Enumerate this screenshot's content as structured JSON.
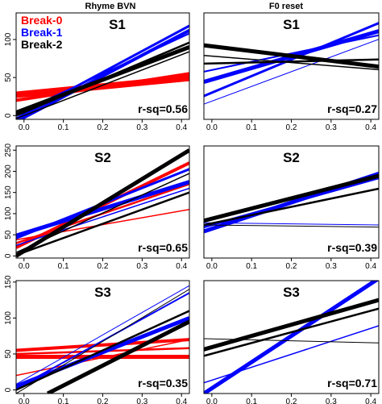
{
  "figure": {
    "column_titles": [
      "Rhyme BVN",
      "F0 reset"
    ],
    "legend": [
      {
        "label": "Break-0",
        "color": "#ff0000"
      },
      {
        "label": "Break-1",
        "color": "#0000ff"
      },
      {
        "label": "Break-2",
        "color": "#000000"
      }
    ]
  },
  "chart_data": [
    {
      "type": "line",
      "title": "S1",
      "annotation": "r-sq=0.56",
      "xlim": [
        -0.02,
        0.42
      ],
      "ylim": [
        -5,
        135
      ],
      "xticks": [
        "0.0",
        "0.1",
        "0.2",
        "0.3",
        "0.4"
      ],
      "xtick_values": [
        0,
        0.1,
        0.2,
        0.3,
        0.4
      ],
      "yticks": [
        "0",
        "50",
        "100"
      ],
      "ytick_values": [
        0,
        50,
        100
      ],
      "series": [
        {
          "group": "Break-0",
          "color": "#ff0000",
          "width": 5,
          "x": [
            -0.02,
            0.42
          ],
          "y": [
            27,
            48
          ]
        },
        {
          "group": "Break-0",
          "color": "#ff0000",
          "width": 4,
          "x": [
            -0.02,
            0.42
          ],
          "y": [
            20,
            55
          ]
        },
        {
          "group": "Break-0",
          "color": "#ff0000",
          "width": 3,
          "x": [
            -0.02,
            0.42
          ],
          "y": [
            30,
            52
          ]
        },
        {
          "group": "Break-0",
          "color": "#ff0000",
          "width": 1.5,
          "x": [
            -0.02,
            0.42
          ],
          "y": [
            24,
            46
          ]
        },
        {
          "group": "Break-1",
          "color": "#0000ff",
          "width": 4,
          "x": [
            -0.02,
            0.42
          ],
          "y": [
            -8,
            112
          ]
        },
        {
          "group": "Break-1",
          "color": "#0000ff",
          "width": 3,
          "x": [
            -0.02,
            0.42
          ],
          "y": [
            -4,
            118
          ]
        },
        {
          "group": "Break-1",
          "color": "#0000ff",
          "width": 2,
          "x": [
            -0.02,
            0.42
          ],
          "y": [
            2,
            108
          ]
        },
        {
          "group": "Break-2",
          "color": "#000000",
          "width": 5,
          "x": [
            -0.02,
            0.42
          ],
          "y": [
            4,
            90
          ]
        },
        {
          "group": "Break-2",
          "color": "#000000",
          "width": 2.5,
          "x": [
            -0.02,
            0.42
          ],
          "y": [
            0,
            96
          ]
        },
        {
          "group": "Break-2",
          "color": "#000000",
          "width": 1.5,
          "x": [
            -0.02,
            0.42
          ],
          "y": [
            -4,
            84
          ]
        }
      ]
    },
    {
      "type": "line",
      "title": "S1",
      "annotation": "r-sq=0.27",
      "xlim": [
        -0.02,
        0.42
      ],
      "ylim": [
        -0.05,
        1.0
      ],
      "xticks": [
        "0.0",
        "0.1",
        "0.2",
        "0.3",
        "0.4"
      ],
      "xtick_values": [
        0,
        0.1,
        0.2,
        0.3,
        0.4
      ],
      "yticks": [],
      "ytick_values": [],
      "series": [
        {
          "group": "Break-1",
          "color": "#0000ff",
          "width": 5,
          "x": [
            -0.02,
            0.42
          ],
          "y": [
            0.32,
            0.82
          ]
        },
        {
          "group": "Break-1",
          "color": "#0000ff",
          "width": 3,
          "x": [
            -0.02,
            0.42
          ],
          "y": [
            0.18,
            0.9
          ]
        },
        {
          "group": "Break-1",
          "color": "#0000ff",
          "width": 2,
          "x": [
            -0.02,
            0.42
          ],
          "y": [
            0.42,
            0.78
          ]
        },
        {
          "group": "Break-1",
          "color": "#0000ff",
          "width": 1,
          "x": [
            -0.02,
            0.42
          ],
          "y": [
            0.1,
            0.74
          ]
        },
        {
          "group": "Break-2",
          "color": "#000000",
          "width": 5,
          "x": [
            -0.02,
            0.42
          ],
          "y": [
            0.68,
            0.47
          ]
        },
        {
          "group": "Break-2",
          "color": "#000000",
          "width": 2.5,
          "x": [
            -0.02,
            0.42
          ],
          "y": [
            0.5,
            0.54
          ]
        },
        {
          "group": "Break-2",
          "color": "#000000",
          "width": 1.5,
          "x": [
            -0.02,
            0.42
          ],
          "y": [
            0.58,
            0.44
          ]
        }
      ]
    },
    {
      "type": "line",
      "title": "S2",
      "annotation": "r-sq=0.65",
      "xlim": [
        -0.02,
        0.42
      ],
      "ylim": [
        -5,
        260
      ],
      "xticks": [
        "0.0",
        "0.1",
        "0.2",
        "0.3",
        "0.4"
      ],
      "xtick_values": [
        0,
        0.1,
        0.2,
        0.3,
        0.4
      ],
      "yticks": [
        "0",
        "50",
        "100",
        "150",
        "200",
        "250"
      ],
      "ytick_values": [
        0,
        50,
        100,
        150,
        200,
        250
      ],
      "series": [
        {
          "group": "Break-0",
          "color": "#ff0000",
          "width": 4,
          "x": [
            -0.02,
            0.42
          ],
          "y": [
            20,
            220
          ]
        },
        {
          "group": "Break-0",
          "color": "#ff0000",
          "width": 2.5,
          "x": [
            -0.02,
            0.42
          ],
          "y": [
            30,
            170
          ]
        },
        {
          "group": "Break-0",
          "color": "#ff0000",
          "width": 1.5,
          "x": [
            -0.02,
            0.42
          ],
          "y": [
            38,
            110
          ]
        },
        {
          "group": "Break-1",
          "color": "#0000ff",
          "width": 5,
          "x": [
            -0.02,
            0.42
          ],
          "y": [
            48,
            175
          ]
        },
        {
          "group": "Break-1",
          "color": "#0000ff",
          "width": 3,
          "x": [
            -0.02,
            0.42
          ],
          "y": [
            42,
            205
          ]
        },
        {
          "group": "Break-1",
          "color": "#0000ff",
          "width": 1.5,
          "x": [
            -0.02,
            0.42
          ],
          "y": [
            25,
            160
          ]
        },
        {
          "group": "Break-2",
          "color": "#000000",
          "width": 5,
          "x": [
            -0.02,
            0.42
          ],
          "y": [
            0,
            250
          ]
        },
        {
          "group": "Break-2",
          "color": "#000000",
          "width": 2.5,
          "x": [
            -0.02,
            0.42
          ],
          "y": [
            2,
            150
          ]
        },
        {
          "group": "Break-2",
          "color": "#000000",
          "width": 1.5,
          "x": [
            -0.02,
            0.42
          ],
          "y": [
            8,
            195
          ]
        }
      ]
    },
    {
      "type": "line",
      "title": "S2",
      "annotation": "r-sq=0.39",
      "xlim": [
        -0.02,
        0.42
      ],
      "ylim": [
        -0.05,
        1.0
      ],
      "xticks": [
        "0.0",
        "0.1",
        "0.2",
        "0.3",
        "0.4"
      ],
      "xtick_values": [
        0,
        0.1,
        0.2,
        0.3,
        0.4
      ],
      "yticks": [],
      "ytick_values": [],
      "series": [
        {
          "group": "Break-1",
          "color": "#0000ff",
          "width": 5,
          "x": [
            -0.02,
            0.42
          ],
          "y": [
            0.2,
            0.74
          ]
        },
        {
          "group": "Break-1",
          "color": "#0000ff",
          "width": 3,
          "x": [
            -0.02,
            0.42
          ],
          "y": [
            0.24,
            0.7
          ]
        },
        {
          "group": "Break-1",
          "color": "#0000ff",
          "width": 1,
          "x": [
            -0.02,
            0.42
          ],
          "y": [
            0.28,
            0.26
          ]
        },
        {
          "group": "Break-2",
          "color": "#000000",
          "width": 5,
          "x": [
            -0.02,
            0.42
          ],
          "y": [
            0.3,
            0.72
          ]
        },
        {
          "group": "Break-2",
          "color": "#000000",
          "width": 2.5,
          "x": [
            -0.02,
            0.42
          ],
          "y": [
            0.26,
            0.6
          ]
        },
        {
          "group": "Break-2",
          "color": "#000000",
          "width": 1,
          "x": [
            -0.02,
            0.42
          ],
          "y": [
            0.26,
            0.24
          ]
        }
      ]
    },
    {
      "type": "line",
      "title": "S3",
      "annotation": "r-sq=0.35",
      "xlim": [
        -0.02,
        0.42
      ],
      "ylim": [
        -5,
        152
      ],
      "xticks": [
        "0.0",
        "0.1",
        "0.2",
        "0.3",
        "0.4"
      ],
      "xtick_values": [
        0,
        0.1,
        0.2,
        0.3,
        0.4
      ],
      "yticks": [
        "0",
        "50",
        "100",
        "150"
      ],
      "ytick_values": [
        0,
        50,
        100,
        150
      ],
      "series": [
        {
          "group": "Break-0",
          "color": "#ff0000",
          "width": 5,
          "x": [
            -0.02,
            0.42
          ],
          "y": [
            46,
            46
          ]
        },
        {
          "group": "Break-0",
          "color": "#ff0000",
          "width": 4,
          "x": [
            -0.02,
            0.42
          ],
          "y": [
            55,
            70
          ]
        },
        {
          "group": "Break-0",
          "color": "#ff0000",
          "width": 2.5,
          "x": [
            -0.02,
            0.42
          ],
          "y": [
            50,
            58
          ]
        },
        {
          "group": "Break-0",
          "color": "#ff0000",
          "width": 1.5,
          "x": [
            -0.02,
            0.42
          ],
          "y": [
            20,
            70
          ]
        },
        {
          "group": "Break-1",
          "color": "#0000ff",
          "width": 5,
          "x": [
            -0.02,
            0.42
          ],
          "y": [
            5,
            100
          ]
        },
        {
          "group": "Break-1",
          "color": "#0000ff",
          "width": 2,
          "x": [
            -0.02,
            0.42
          ],
          "y": [
            2,
            135
          ]
        },
        {
          "group": "Break-1",
          "color": "#0000ff",
          "width": 1,
          "x": [
            -0.02,
            0.42
          ],
          "y": [
            8,
            145
          ]
        },
        {
          "group": "Break-2",
          "color": "#000000",
          "width": 5,
          "x": [
            0.06,
            0.42
          ],
          "y": [
            -5,
            95
          ]
        },
        {
          "group": "Break-2",
          "color": "#000000",
          "width": 2.5,
          "x": [
            -0.02,
            0.42
          ],
          "y": [
            0,
            110
          ]
        },
        {
          "group": "Break-2",
          "color": "#000000",
          "width": 1,
          "x": [
            -0.02,
            0.42
          ],
          "y": [
            -5,
            140
          ]
        }
      ]
    },
    {
      "type": "line",
      "title": "S3",
      "annotation": "r-sq=0.71",
      "xlim": [
        -0.02,
        0.42
      ],
      "ylim": [
        -0.05,
        1.0
      ],
      "xticks": [
        "0.0",
        "0.1",
        "0.2",
        "0.3",
        "0.4"
      ],
      "xtick_values": [
        0,
        0.1,
        0.2,
        0.3,
        0.4
      ],
      "yticks": [],
      "ytick_values": [],
      "series": [
        {
          "group": "Break-1",
          "color": "#0000ff",
          "width": 5,
          "x": [
            -0.02,
            0.42
          ],
          "y": [
            -0.05,
            1.02
          ]
        },
        {
          "group": "Break-1",
          "color": "#0000ff",
          "width": 1.5,
          "x": [
            -0.02,
            0.42
          ],
          "y": [
            0.05,
            0.58
          ]
        },
        {
          "group": "Break-2",
          "color": "#000000",
          "width": 5,
          "x": [
            -0.02,
            0.42
          ],
          "y": [
            0.36,
            0.82
          ]
        },
        {
          "group": "Break-2",
          "color": "#000000",
          "width": 2.5,
          "x": [
            -0.02,
            0.42
          ],
          "y": [
            0.3,
            0.74
          ]
        },
        {
          "group": "Break-2",
          "color": "#000000",
          "width": 1,
          "x": [
            -0.02,
            0.42
          ],
          "y": [
            0.46,
            0.42
          ]
        }
      ]
    }
  ]
}
